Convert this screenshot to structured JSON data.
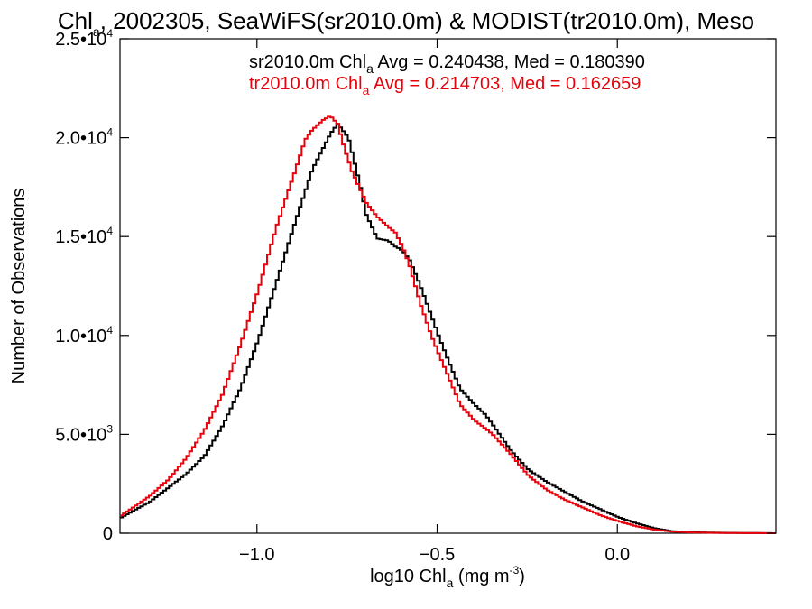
{
  "chart_data": {
    "type": "line",
    "title": {
      "part1": "Chl",
      "part1_sub": "a",
      "part2": ", 2002305, SeaWiFS(sr2010.0m) & MODIST(tr2010.0m), Meso"
    },
    "xlabel": {
      "pre": "log10 Chl",
      "sub": "a",
      "mid": " (mg m",
      "sup": "-3",
      "post": ")"
    },
    "ylabel": "Number of Observations",
    "xlim": [
      -1.38,
      0.44
    ],
    "ylim": [
      0,
      25000
    ],
    "x_ticks": [
      {
        "value": -1.0,
        "label": "−1.0"
      },
      {
        "value": -0.5,
        "label": "−0.5"
      },
      {
        "value": 0.0,
        "label": "0.0"
      }
    ],
    "y_ticks": [
      {
        "value": 0,
        "label": "0",
        "exp": ""
      },
      {
        "value": 5000,
        "label": "5.0•10",
        "exp": "3"
      },
      {
        "value": 10000,
        "label": "1.0•10",
        "exp": "4"
      },
      {
        "value": 15000,
        "label": "1.5•10",
        "exp": "4"
      },
      {
        "value": 20000,
        "label": "2.0•10",
        "exp": "4"
      },
      {
        "value": 25000,
        "label": "2.5•10",
        "exp": "4"
      }
    ],
    "legend": [
      {
        "pre": "sr2010.0m Chl",
        "sub": "a",
        "post": " Avg = 0.240438, Med = 0.180390",
        "color": "#000000"
      },
      {
        "pre": "tr2010.0m Chl",
        "sub": "a",
        "post": " Avg = 0.214703, Med = 0.162659",
        "color": "#e8000b"
      }
    ],
    "grid": false,
    "step": true,
    "series": [
      {
        "name": "sr2010.0m",
        "color": "#000000",
        "x": [
          -1.38,
          -1.3,
          -1.25,
          -1.2,
          -1.15,
          -1.1,
          -1.05,
          -1.0,
          -0.95,
          -0.9,
          -0.85,
          -0.8,
          -0.78,
          -0.75,
          -0.72,
          -0.7,
          -0.67,
          -0.64,
          -0.62,
          -0.6,
          -0.58,
          -0.55,
          -0.52,
          -0.5,
          -0.47,
          -0.44,
          -0.4,
          -0.37,
          -0.35,
          -0.3,
          -0.25,
          -0.2,
          -0.15,
          -0.1,
          -0.05,
          0.0,
          0.05,
          0.1,
          0.15,
          0.2,
          0.3,
          0.44
        ],
        "y": [
          800,
          1600,
          2300,
          3000,
          3900,
          5400,
          7300,
          9800,
          12700,
          15600,
          18400,
          20200,
          20700,
          20000,
          17800,
          16100,
          14900,
          14800,
          14500,
          14300,
          13800,
          12500,
          11000,
          10000,
          8600,
          7300,
          6500,
          6000,
          5500,
          4200,
          3200,
          2600,
          2100,
          1600,
          1200,
          800,
          500,
          250,
          100,
          50,
          20,
          0
        ]
      },
      {
        "name": "tr2010.0m",
        "color": "#e8000b",
        "x": [
          -1.38,
          -1.3,
          -1.25,
          -1.2,
          -1.15,
          -1.1,
          -1.05,
          -1.0,
          -0.95,
          -0.9,
          -0.87,
          -0.85,
          -0.82,
          -0.8,
          -0.78,
          -0.76,
          -0.74,
          -0.72,
          -0.7,
          -0.67,
          -0.64,
          -0.62,
          -0.6,
          -0.58,
          -0.55,
          -0.52,
          -0.5,
          -0.47,
          -0.44,
          -0.4,
          -0.37,
          -0.35,
          -0.3,
          -0.25,
          -0.2,
          -0.15,
          -0.1,
          -0.05,
          0.0,
          0.05,
          0.1,
          0.15,
          0.2,
          0.3,
          0.44
        ],
        "y": [
          900,
          1900,
          2700,
          3800,
          5200,
          7000,
          9500,
          12300,
          15500,
          18200,
          19900,
          20400,
          20900,
          21100,
          20700,
          19400,
          18300,
          17500,
          16700,
          16000,
          15500,
          15200,
          14500,
          13500,
          11600,
          10000,
          9100,
          7800,
          6500,
          5700,
          5300,
          5000,
          4000,
          2900,
          2200,
          1700,
          1300,
          900,
          600,
          350,
          180,
          80,
          40,
          10,
          0
        ]
      }
    ]
  }
}
